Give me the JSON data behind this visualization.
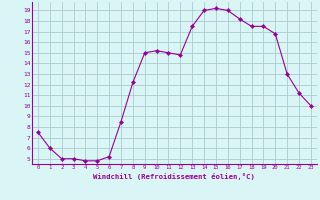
{
  "x": [
    0,
    1,
    2,
    3,
    4,
    5,
    6,
    7,
    8,
    9,
    10,
    11,
    12,
    13,
    14,
    15,
    16,
    17,
    18,
    19,
    20,
    21,
    22,
    23
  ],
  "y": [
    7.5,
    6.0,
    5.0,
    5.0,
    4.8,
    4.8,
    5.2,
    8.5,
    12.2,
    15.0,
    15.2,
    15.0,
    14.8,
    17.5,
    19.0,
    19.2,
    19.0,
    18.2,
    17.5,
    17.5,
    16.8,
    13.0,
    11.2,
    10.0
  ],
  "xlim": [
    -0.5,
    23.5
  ],
  "ylim": [
    4.5,
    19.8
  ],
  "yticks": [
    5,
    6,
    7,
    8,
    9,
    10,
    11,
    12,
    13,
    14,
    15,
    16,
    17,
    18,
    19
  ],
  "xticks": [
    0,
    1,
    2,
    3,
    4,
    5,
    6,
    7,
    8,
    9,
    10,
    11,
    12,
    13,
    14,
    15,
    16,
    17,
    18,
    19,
    20,
    21,
    22,
    23
  ],
  "xlabel": "Windchill (Refroidissement éolien,°C)",
  "line_color": "#990099",
  "marker": "D",
  "marker_size": 2.2,
  "bg_color": "#d9f5f5",
  "grid_color": "#aacccc"
}
